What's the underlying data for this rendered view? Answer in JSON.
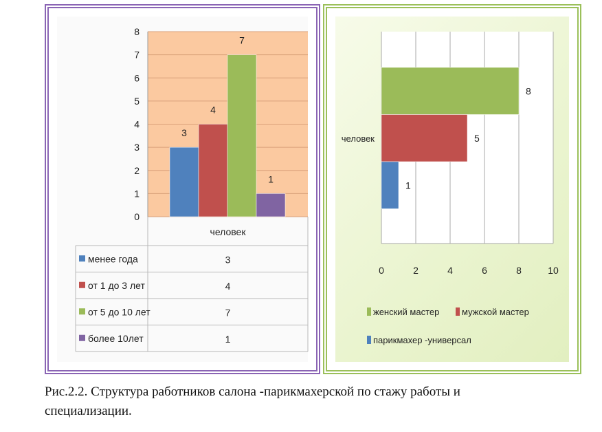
{
  "chart_data": [
    {
      "type": "bar",
      "title": "",
      "xlabel": "",
      "ylabel": "",
      "ylim": [
        0,
        8
      ],
      "yticks": [
        "0",
        "1",
        "2",
        "3",
        "4",
        "5",
        "6",
        "7",
        "8"
      ],
      "categories": [
        "человек"
      ],
      "series": [
        {
          "name": "менее года",
          "values": [
            3
          ],
          "color": "#4f81bd"
        },
        {
          "name": "от 1 до 3 лет",
          "values": [
            4
          ],
          "color": "#c0504d"
        },
        {
          "name": "от 5 до 10 лет",
          "values": [
            7
          ],
          "color": "#9bbb59"
        },
        {
          "name": "более 10лет",
          "values": [
            1
          ],
          "color": "#8064a2"
        }
      ],
      "data_labels": [
        "3",
        "4",
        "7",
        "1"
      ],
      "table": {
        "rows": [
          {
            "label": "менее года",
            "value": "3"
          },
          {
            "label": "от 1 до 3 лет",
            "value": "4"
          },
          {
            "label": "от 5 до 10 лет",
            "value": "7"
          },
          {
            "label": "более 10лет",
            "value": "1"
          }
        ]
      },
      "plot_bg": "#fbc9a0"
    },
    {
      "type": "bar",
      "orientation": "horizontal",
      "title": "",
      "xlabel": "",
      "ylabel": "",
      "xlim": [
        0,
        10
      ],
      "xticks": [
        "0",
        "2",
        "4",
        "6",
        "8",
        "10"
      ],
      "categories": [
        "человек"
      ],
      "series": [
        {
          "name": "женский мастер",
          "values": [
            8
          ],
          "color": "#9bbb59"
        },
        {
          "name": "мужской мастер",
          "values": [
            5
          ],
          "color": "#c0504d"
        },
        {
          "name": "парикмахер -универсал",
          "values": [
            1
          ],
          "color": "#4f81bd"
        }
      ],
      "data_labels": [
        "8",
        "5",
        "1"
      ],
      "legend_position": "bottom"
    }
  ],
  "caption": {
    "line1": "Рис.2.2. Структура работников салона -парикмахерской по стажу работы и",
    "line2": "специализации."
  }
}
